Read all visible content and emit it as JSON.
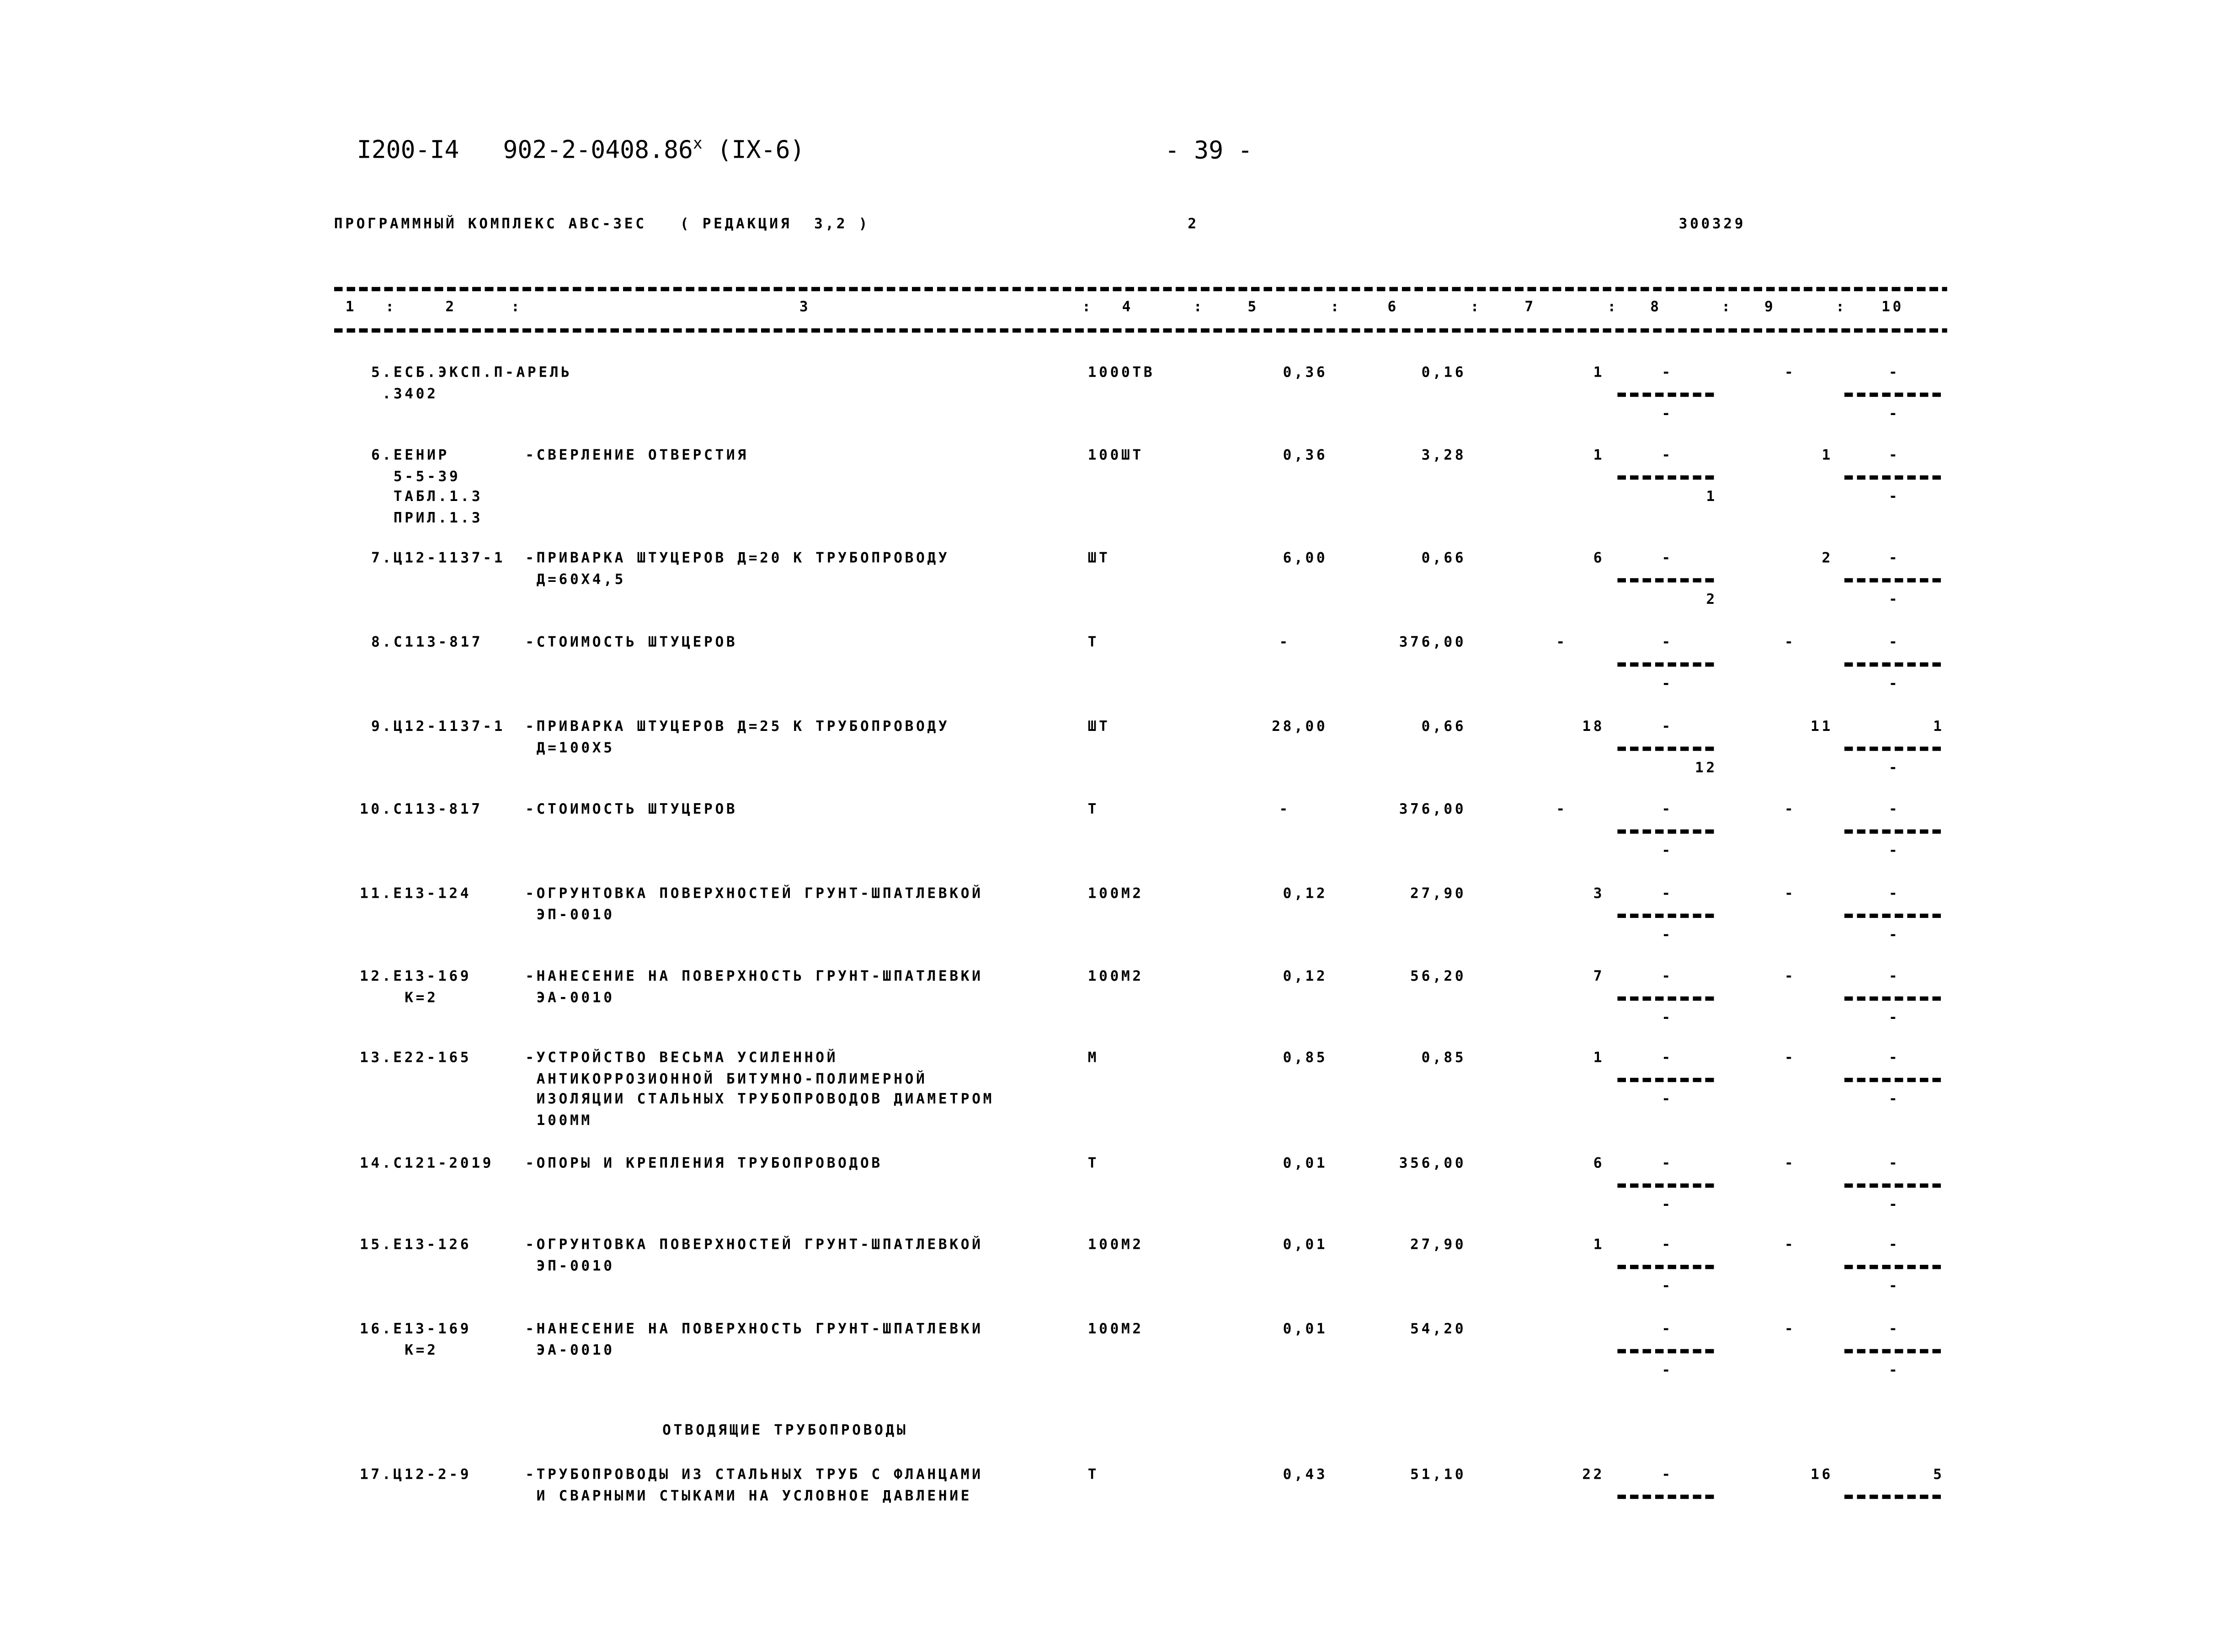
{
  "header": {
    "doc_code": "I200-I4",
    "doc_number": "902-2-0408.86",
    "doc_sup": "x",
    "doc_part": "(IX-6)",
    "page": "- 39 -"
  },
  "program_line": {
    "title": "ПРОГРАММНЫЙ КОМПЛЕКС АВС-3ЕС   ( РЕДАКЦИЯ  3,2 )",
    "sheet": "2",
    "code": "300329"
  },
  "columns": [
    "1",
    "2",
    "3",
    "4",
    "5",
    "6",
    "7",
    "8",
    "9",
    "10"
  ],
  "section_title": "ОТВОДЯЩИЕ ТРУБОПРОВОДЫ",
  "rows": [
    {
      "code": [
        "5.ЕСБ.ЭКСП.П-АРЕЛЬ",
        " .3402"
      ],
      "desc": [],
      "unit": "1000ТВ",
      "c5": "0,36",
      "c6": "0,16",
      "c7": "1",
      "c8": [
        "-",
        "-"
      ],
      "c9": "-",
      "c10": [
        "-",
        "-"
      ]
    },
    {
      "code": [
        "6.ЕЕНИР",
        "  5-5-39",
        "  ТАБЛ.1.3",
        "  ПРИЛ.1.3"
      ],
      "desc": [
        "-СВЕРЛЕНИЕ ОТВЕРСТИЯ"
      ],
      "unit": "100ШТ",
      "c5": "0,36",
      "c6": "3,28",
      "c7": "1",
      "c8": [
        "-",
        "1"
      ],
      "c9": "1",
      "c10": [
        "-",
        "-"
      ]
    },
    {
      "code": [
        "7.Ц12-1137-1"
      ],
      "desc": [
        "-ПРИВАРКА ШТУЦЕРОВ Д=20 К ТРУБОПРОВОДУ",
        " Д=60Х4,5"
      ],
      "unit": "ШТ",
      "c5": "6,00",
      "c6": "0,66",
      "c7": "6",
      "c8": [
        "-",
        "2"
      ],
      "c9": "2",
      "c10": [
        "-",
        "-"
      ]
    },
    {
      "code": [
        "8.С113-817"
      ],
      "desc": [
        "-СТОИМОСТЬ ШТУЦЕРОВ"
      ],
      "unit": "Т",
      "c5": "-",
      "c6": "376,00",
      "c7": "-",
      "c8": [
        "-",
        "-"
      ],
      "c9": "-",
      "c10": [
        "-",
        "-"
      ]
    },
    {
      "code": [
        "9.Ц12-1137-1"
      ],
      "desc": [
        "-ПРИВАРКА ШТУЦЕРОВ Д=25 К ТРУБОПРОВОДУ",
        " Д=100Х5"
      ],
      "unit": "ШТ",
      "c5": "28,00",
      "c6": "0,66",
      "c7": "18",
      "c8": [
        "-",
        "12"
      ],
      "c9": "11",
      "c10": [
        "1",
        "-"
      ]
    },
    {
      "code": [
        "10.С113-817"
      ],
      "desc": [
        "-СТОИМОСТЬ ШТУЦЕРОВ"
      ],
      "unit": "Т",
      "c5": "-",
      "c6": "376,00",
      "c7": "-",
      "c8": [
        "-",
        "-"
      ],
      "c9": "-",
      "c10": [
        "-",
        "-"
      ]
    },
    {
      "code": [
        "11.Е13-124"
      ],
      "desc": [
        "-ОГРУНТОВКА ПОВЕРХНОСТЕЙ ГРУНТ-ШПАТЛЕВКОЙ",
        " ЭП-0010"
      ],
      "unit": "100М2",
      "c5": "0,12",
      "c6": "27,90",
      "c7": "3",
      "c8": [
        "-",
        "-"
      ],
      "c9": "-",
      "c10": [
        "-",
        "-"
      ]
    },
    {
      "code": [
        "12.Е13-169",
        "   К=2"
      ],
      "desc": [
        "-НАНЕСЕНИЕ НА ПОВЕРХНОСТЬ ГРУНТ-ШПАТЛЕВКИ",
        " ЭА-0010"
      ],
      "unit": "100М2",
      "c5": "0,12",
      "c6": "56,20",
      "c7": "7",
      "c8": [
        "-",
        "-"
      ],
      "c9": "-",
      "c10": [
        "-",
        "-"
      ]
    },
    {
      "code": [
        "13.Е22-165"
      ],
      "desc": [
        "-УСТРОЙСТВО ВЕСЬМА УСИЛЕННОЙ",
        " АНТИКОРРОЗИОННОЙ БИТУМНО-ПОЛИМЕРНОЙ",
        " ИЗОЛЯЦИИ СТАЛЬНЫХ ТРУБОПРОВОДОВ ДИАМЕТРОМ",
        " 100ММ"
      ],
      "unit": "М",
      "c5": "0,85",
      "c6": "0,85",
      "c7": "1",
      "c8": [
        "-",
        "-"
      ],
      "c9": "-",
      "c10": [
        "-",
        "-"
      ]
    },
    {
      "code": [
        "14.С121-2019"
      ],
      "desc": [
        "-ОПОРЫ И КРЕПЛЕНИЯ ТРУБОПРОВОДОВ"
      ],
      "unit": "Т",
      "c5": "0,01",
      "c6": "356,00",
      "c7": "6",
      "c8": [
        "-",
        "-"
      ],
      "c9": "-",
      "c10": [
        "-",
        "-"
      ]
    },
    {
      "code": [
        "15.Е13-126"
      ],
      "desc": [
        "-ОГРУНТОВКА ПОВЕРХНОСТЕЙ ГРУНТ-ШПАТЛЕВКОЙ",
        " ЭП-0010"
      ],
      "unit": "100М2",
      "c5": "0,01",
      "c6": "27,90",
      "c7": "1",
      "c8": [
        "-",
        "-"
      ],
      "c9": "-",
      "c10": [
        "-",
        "-"
      ]
    },
    {
      "code": [
        "16.Е13-169",
        "   К=2"
      ],
      "desc": [
        "-НАНЕСЕНИЕ НА ПОВЕРХНОСТЬ ГРУНТ-ШПАТЛЕВКИ",
        " ЭА-0010"
      ],
      "unit": "100М2",
      "c5": "0,01",
      "c6": "54,20",
      "c7": "",
      "c8": [
        "-",
        "-"
      ],
      "c9": "-",
      "c10": [
        "-",
        "-"
      ]
    },
    {
      "code": [
        "17.Ц12-2-9"
      ],
      "desc": [
        "-ТРУБОПРОВОДЫ ИЗ СТАЛЬНЫХ ТРУБ С ФЛАНЦАМИ",
        " И СВАРНЫМИ СТЫКАМИ НА УСЛОВНОЕ ДАВЛЕНИЕ"
      ],
      "unit": "Т",
      "c5": "0,43",
      "c6": "51,10",
      "c7": "22",
      "c8": [
        "-",
        ""
      ],
      "c9": "16",
      "c10": [
        "5",
        ""
      ]
    }
  ]
}
